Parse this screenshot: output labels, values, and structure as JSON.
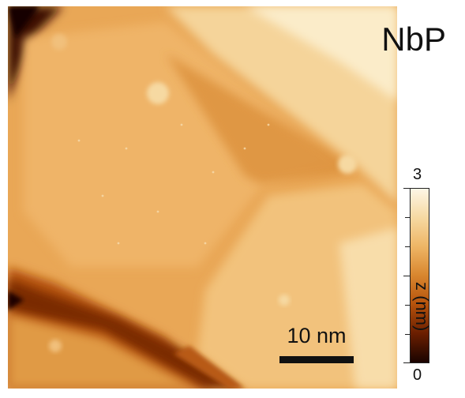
{
  "image": {
    "sample_label": "NbP",
    "scale_bar": {
      "label": "10 nm"
    },
    "colorbar": {
      "max_label": "3",
      "min_label": "0",
      "unit_label": "z (nm)",
      "colors": [
        "#1a0400",
        "#6a1e00",
        "#b5520c",
        "#d8862e",
        "#eeb565",
        "#f6d9a2",
        "#fdf6e6"
      ]
    }
  }
}
